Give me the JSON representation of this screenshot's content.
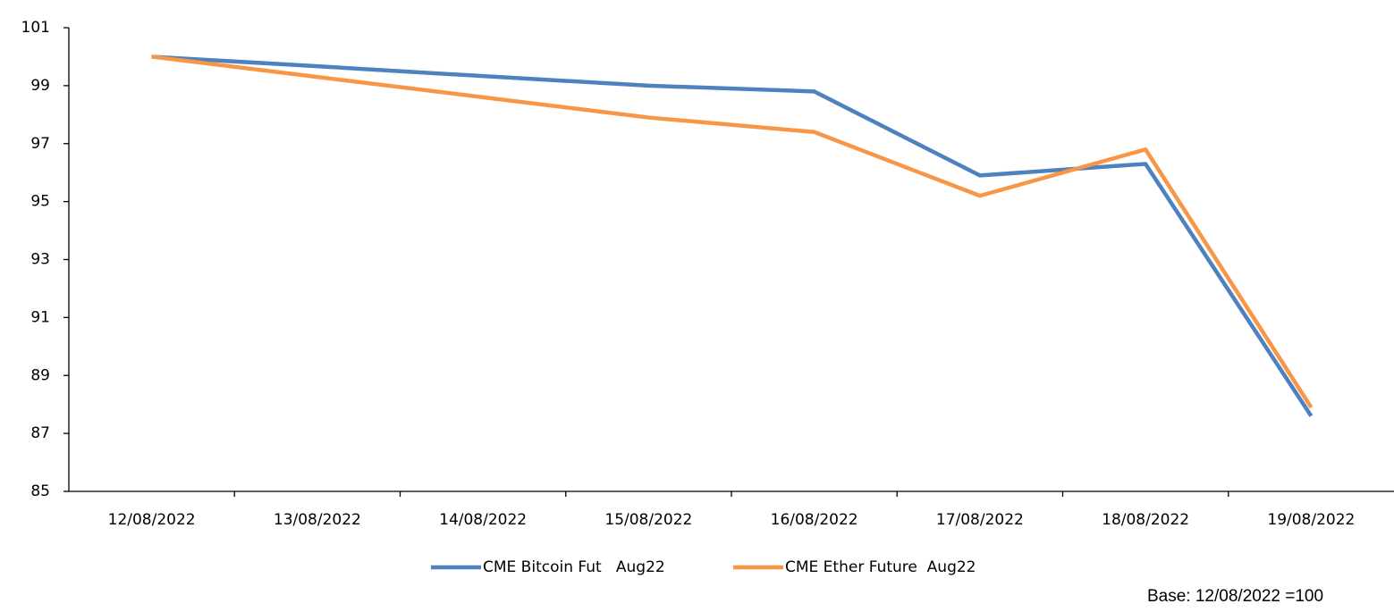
{
  "chart_data": {
    "type": "line",
    "categories": [
      "12/08/2022",
      "13/08/2022",
      "14/08/2022",
      "15/08/2022",
      "16/08/2022",
      "17/08/2022",
      "18/08/2022",
      "19/08/2022"
    ],
    "series": [
      {
        "name": "CME Bitcoin Fut   Aug22",
        "color": "#4e81bd",
        "values": [
          100,
          99.67,
          99.33,
          99.0,
          98.8,
          95.9,
          96.3,
          87.6
        ]
      },
      {
        "name": "CME Ether Future  Aug22",
        "color": "#f79646",
        "values": [
          100,
          99.3,
          98.6,
          97.9,
          97.4,
          95.2,
          96.8,
          87.9
        ]
      }
    ],
    "ylim": [
      85,
      101
    ],
    "yticks": [
      85,
      87,
      89,
      91,
      93,
      95,
      97,
      99,
      101
    ],
    "legend": "bottom",
    "note": "Base:  12/08/2022 =100"
  }
}
